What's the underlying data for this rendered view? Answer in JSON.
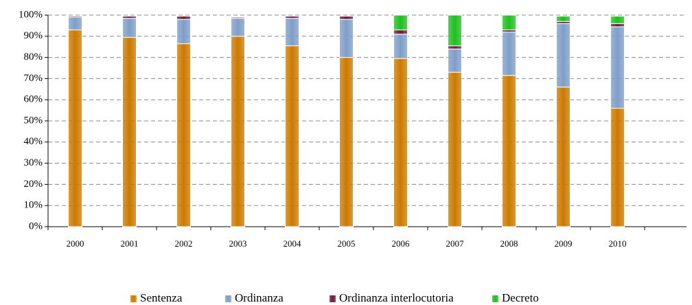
{
  "chart_data": {
    "type": "stacked_bar",
    "categories": [
      "2000",
      "2001",
      "2002",
      "2003",
      "2004",
      "2005",
      "2006",
      "2007",
      "2008",
      "2009",
      "2010",
      null
    ],
    "series": [
      {
        "name": "Sentenza",
        "color": "#cc7a00",
        "values": [
          93,
          89.5,
          86.5,
          90,
          85.5,
          80,
          79.5,
          73,
          71.5,
          66,
          56,
          null
        ]
      },
      {
        "name": "Ordinanza",
        "color": "#7f9ec8",
        "values": [
          6,
          9,
          11.5,
          8.5,
          13,
          18,
          11.5,
          11,
          20.5,
          30,
          38.5,
          null
        ]
      },
      {
        "name": "Ordinanza interlocutoria",
        "color": "#6b1a3a",
        "values": [
          0.5,
          1,
          1.5,
          0.5,
          1,
          1.5,
          2,
          1.5,
          1,
          1,
          1.5,
          null
        ]
      },
      {
        "name": "Decreto",
        "color": "#1fbf1f",
        "values": [
          0,
          0,
          0,
          0,
          0,
          0,
          7,
          14.5,
          7,
          2.5,
          3.5,
          null
        ]
      }
    ],
    "ylim": [
      0,
      100
    ],
    "yticks": [
      {
        "value": 0,
        "label": "0%"
      },
      {
        "value": 10,
        "label": "10%"
      },
      {
        "value": 20,
        "label": "20%"
      },
      {
        "value": 30,
        "label": "30%"
      },
      {
        "value": 40,
        "label": "40%"
      },
      {
        "value": 50,
        "label": "50%"
      },
      {
        "value": 60,
        "label": "60%"
      },
      {
        "value": 70,
        "label": "70%"
      },
      {
        "value": 80,
        "label": "80%"
      },
      {
        "value": 90,
        "label": "90%"
      },
      {
        "value": 100,
        "label": "100%"
      }
    ],
    "grid": true,
    "legend": "bottom"
  }
}
